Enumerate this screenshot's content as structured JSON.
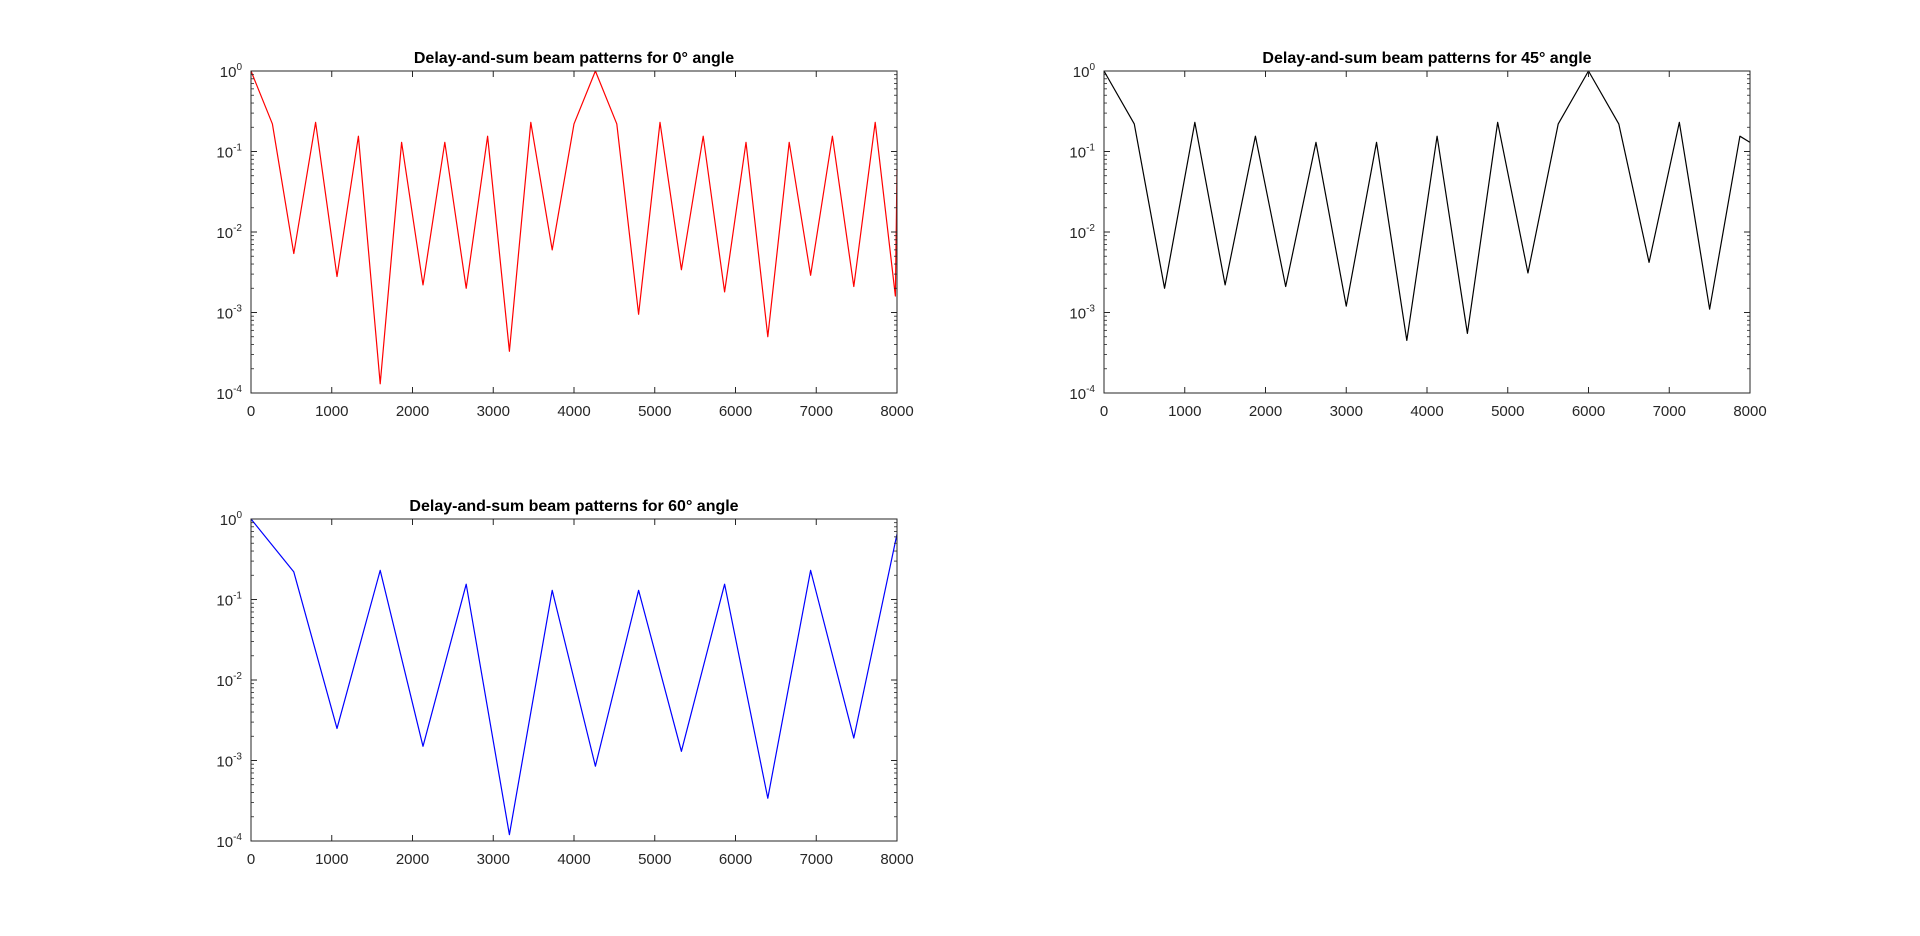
{
  "figure": {
    "background": "#ffffff"
  },
  "chart_data": [
    {
      "type": "line",
      "title": "Delay-and-sum beam patterns for 0° angle",
      "xlabel": "",
      "ylabel": "",
      "yscale": "log",
      "xlim": [
        0,
        8000
      ],
      "ylim": [
        0.0001,
        1
      ],
      "xticks": [
        "0",
        "1000",
        "2000",
        "3000",
        "4000",
        "5000",
        "6000",
        "7000",
        "8000"
      ],
      "yticks": [
        {
          "base": "10",
          "exp": "-4"
        },
        {
          "base": "10",
          "exp": "-3"
        },
        {
          "base": "10",
          "exp": "-2"
        },
        {
          "base": "10",
          "exp": "-1"
        },
        {
          "base": "10",
          "exp": "0"
        }
      ],
      "grid": false,
      "series": [
        {
          "color": "#ff0000",
          "x": [
            0,
            265,
            530,
            800,
            1065,
            1330,
            1600,
            1865,
            2130,
            2400,
            2665,
            2930,
            3200,
            3465,
            3730,
            4000,
            4265,
            4530,
            4800,
            5065,
            5330,
            5600,
            5865,
            6130,
            6400,
            6665,
            6930,
            7200,
            7465,
            7730,
            7980,
            8000
          ],
          "y": [
            1,
            0.22,
            0.0054,
            0.23,
            0.0028,
            0.155,
            0.00013,
            0.13,
            0.0022,
            0.13,
            0.002,
            0.155,
            0.00033,
            0.23,
            0.006,
            0.22,
            1,
            0.22,
            0.00095,
            0.23,
            0.0034,
            0.155,
            0.0018,
            0.13,
            0.0005,
            0.13,
            0.0029,
            0.155,
            0.0021,
            0.23,
            0.0016,
            0.06
          ]
        }
      ]
    },
    {
      "type": "line",
      "title": "Delay-and-sum beam patterns for 45° angle",
      "xlabel": "",
      "ylabel": "",
      "yscale": "log",
      "xlim": [
        0,
        8000
      ],
      "ylim": [
        0.0001,
        1
      ],
      "xticks": [
        "0",
        "1000",
        "2000",
        "3000",
        "4000",
        "5000",
        "6000",
        "7000",
        "8000"
      ],
      "yticks": [
        {
          "base": "10",
          "exp": "-4"
        },
        {
          "base": "10",
          "exp": "-3"
        },
        {
          "base": "10",
          "exp": "-2"
        },
        {
          "base": "10",
          "exp": "-1"
        },
        {
          "base": "10",
          "exp": "0"
        }
      ],
      "grid": false,
      "series": [
        {
          "color": "#000000",
          "x": [
            0,
            375,
            750,
            1125,
            1500,
            1875,
            2250,
            2625,
            3000,
            3375,
            3750,
            4125,
            4500,
            4875,
            5250,
            5625,
            6000,
            6375,
            6750,
            7125,
            7500,
            7875,
            8000
          ],
          "y": [
            1,
            0.22,
            0.002,
            0.23,
            0.0022,
            0.155,
            0.0021,
            0.13,
            0.0012,
            0.13,
            0.00045,
            0.155,
            0.00055,
            0.23,
            0.0031,
            0.22,
            1,
            0.22,
            0.0042,
            0.23,
            0.0011,
            0.155,
            0.13
          ]
        }
      ]
    },
    {
      "type": "line",
      "title": "Delay-and-sum beam patterns for 60° angle",
      "xlabel": "",
      "ylabel": "",
      "yscale": "log",
      "xlim": [
        0,
        8000
      ],
      "ylim": [
        0.0001,
        1
      ],
      "xticks": [
        "0",
        "1000",
        "2000",
        "3000",
        "4000",
        "5000",
        "6000",
        "7000",
        "8000"
      ],
      "yticks": [
        {
          "base": "10",
          "exp": "-4"
        },
        {
          "base": "10",
          "exp": "-3"
        },
        {
          "base": "10",
          "exp": "-2"
        },
        {
          "base": "10",
          "exp": "-1"
        },
        {
          "base": "10",
          "exp": "0"
        }
      ],
      "grid": false,
      "series": [
        {
          "color": "#0000ff",
          "x": [
            0,
            530,
            1065,
            1600,
            2130,
            2665,
            3200,
            3730,
            4265,
            4800,
            5330,
            5865,
            6400,
            6930,
            7465,
            8000
          ],
          "y": [
            1,
            0.22,
            0.0025,
            0.23,
            0.0015,
            0.155,
            0.00012,
            0.13,
            0.00085,
            0.13,
            0.0013,
            0.155,
            0.00034,
            0.23,
            0.0019,
            0.65
          ]
        }
      ]
    }
  ]
}
